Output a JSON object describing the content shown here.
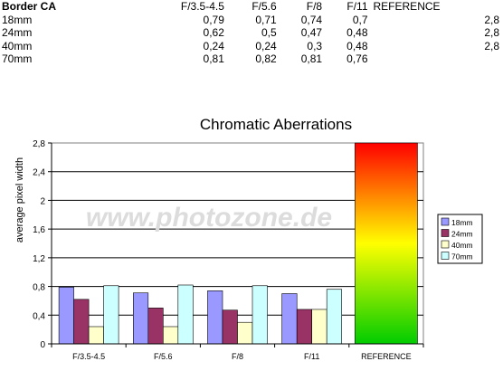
{
  "table": {
    "corner": "Border CA",
    "columns": [
      "F/3.5-4.5",
      "F/5.6",
      "F/8",
      "F/11",
      "REFERENCE"
    ],
    "rows": [
      {
        "label": "18mm",
        "values": [
          "0,79",
          "0,71",
          "0,74",
          "0,7",
          "2,8"
        ]
      },
      {
        "label": "24mm",
        "values": [
          "0,62",
          "0,5",
          "0,47",
          "0,48",
          "2,8"
        ]
      },
      {
        "label": "40mm",
        "values": [
          "0,24",
          "0,24",
          "0,3",
          "0,48",
          "2,8"
        ]
      },
      {
        "label": "70mm",
        "values": [
          "0,81",
          "0,82",
          "0,81",
          "0,76",
          ""
        ]
      }
    ]
  },
  "watermark": "www.photozone.de",
  "chart_data": {
    "type": "bar",
    "title": "Chromatic Aberrations",
    "xlabel": "",
    "ylabel": "average pixel width",
    "categories": [
      "F/3.5-4.5",
      "F/5.6",
      "F/8",
      "F/11"
    ],
    "series": [
      {
        "name": "18mm",
        "color": "#9999ff",
        "values": [
          0.79,
          0.71,
          0.74,
          0.7
        ]
      },
      {
        "name": "24mm",
        "color": "#993366",
        "values": [
          0.62,
          0.5,
          0.47,
          0.48
        ]
      },
      {
        "name": "40mm",
        "color": "#ffffcc",
        "values": [
          0.24,
          0.24,
          0.3,
          0.48
        ]
      },
      {
        "name": "70mm",
        "color": "#ccffff",
        "values": [
          0.81,
          0.82,
          0.81,
          0.76
        ]
      }
    ],
    "reference": {
      "label": "REFERENCE",
      "value": 2.8,
      "gradient": [
        "#ff0000",
        "#ffff00",
        "#00cc00"
      ]
    },
    "ylim": [
      0,
      2.8
    ],
    "yticks": [
      0,
      0.4,
      0.8,
      1.2,
      1.6,
      2,
      2.4,
      2.8
    ],
    "ytick_labels": [
      "0",
      "0,4",
      "0,8",
      "1,2",
      "1,6",
      "2",
      "2,4",
      "2,8"
    ],
    "grid": true,
    "legend": "right"
  }
}
